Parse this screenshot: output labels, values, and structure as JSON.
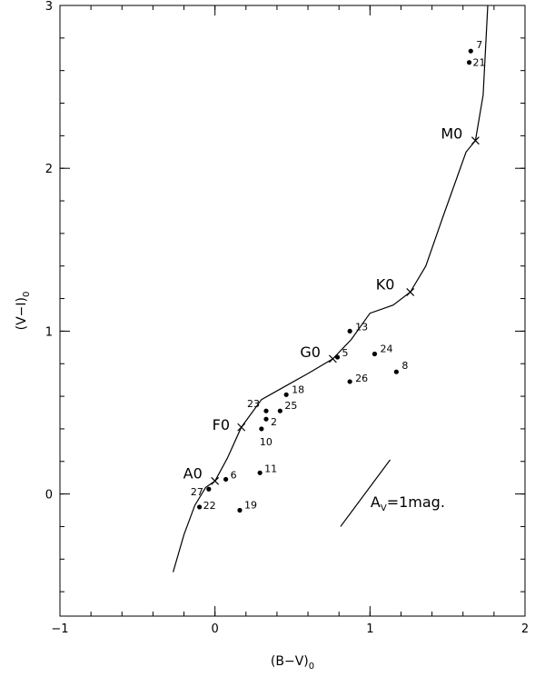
{
  "chart_data": {
    "type": "scatter",
    "title": "",
    "xlabel": "(B−V)",
    "xlabel_sub": "0",
    "ylabel": "(V−I)",
    "ylabel_sub": "0",
    "xlim": [
      -1,
      2
    ],
    "ylim": [
      -0.75,
      3
    ],
    "x_ticks_major": [
      -1,
      0,
      1,
      2
    ],
    "x_tick_labels": [
      "−1",
      "0",
      "1",
      "2"
    ],
    "y_ticks_major": [
      0,
      1,
      2,
      3
    ],
    "y_tick_labels": [
      "0",
      "1",
      "2",
      "3"
    ],
    "x_ticks_minor_step": 0.2,
    "y_ticks_minor_step": 0.2,
    "grid": false,
    "series": [
      {
        "type": "scatter",
        "points": [
          {
            "label": "7",
            "x": 1.65,
            "y": 2.72
          },
          {
            "label": "21",
            "x": 1.64,
            "y": 2.65
          },
          {
            "label": "13",
            "x": 0.87,
            "y": 1.0
          },
          {
            "label": "5",
            "x": 0.79,
            "y": 0.84
          },
          {
            "label": "24",
            "x": 1.03,
            "y": 0.86
          },
          {
            "label": "8",
            "x": 1.17,
            "y": 0.75
          },
          {
            "label": "26",
            "x": 0.87,
            "y": 0.69
          },
          {
            "label": "18",
            "x": 0.46,
            "y": 0.61
          },
          {
            "label": "25",
            "x": 0.42,
            "y": 0.51
          },
          {
            "label": "23",
            "x": 0.33,
            "y": 0.51
          },
          {
            "label": "2",
            "x": 0.33,
            "y": 0.46
          },
          {
            "label": "10",
            "x": 0.3,
            "y": 0.4
          },
          {
            "label": "11",
            "x": 0.29,
            "y": 0.13
          },
          {
            "label": "6",
            "x": 0.07,
            "y": 0.09
          },
          {
            "label": "27",
            "x": -0.04,
            "y": 0.03
          },
          {
            "label": "22",
            "x": -0.1,
            "y": -0.08
          },
          {
            "label": "19",
            "x": 0.16,
            "y": -0.1
          }
        ]
      },
      {
        "type": "line",
        "points": [
          [
            -0.27,
            -0.48
          ],
          [
            -0.2,
            -0.25
          ],
          [
            -0.13,
            -0.07
          ],
          [
            -0.06,
            0.04
          ],
          [
            0.0,
            0.08
          ],
          [
            0.08,
            0.22
          ],
          [
            0.17,
            0.41
          ],
          [
            0.3,
            0.58
          ],
          [
            0.45,
            0.66
          ],
          [
            0.6,
            0.74
          ],
          [
            0.76,
            0.83
          ],
          [
            0.88,
            0.95
          ],
          [
            1.0,
            1.11
          ],
          [
            1.15,
            1.16
          ],
          [
            1.26,
            1.24
          ],
          [
            1.36,
            1.4
          ],
          [
            1.47,
            1.7
          ],
          [
            1.62,
            2.1
          ],
          [
            1.68,
            2.17
          ],
          [
            1.73,
            2.45
          ],
          [
            1.76,
            3.0
          ]
        ]
      }
    ],
    "spectral_markers": [
      {
        "label": "A0",
        "x": 0.0,
        "y": 0.08
      },
      {
        "label": "F0",
        "x": 0.17,
        "y": 0.41
      },
      {
        "label": "G0",
        "x": 0.76,
        "y": 0.83
      },
      {
        "label": "K0",
        "x": 1.26,
        "y": 1.24
      },
      {
        "label": "M0",
        "x": 1.68,
        "y": 2.17
      }
    ],
    "reddening_vector": {
      "label": "A",
      "label_sub": "V",
      "label_rest": "=1mag.",
      "start": [
        0.81,
        -0.2
      ],
      "end": [
        1.13,
        0.21
      ]
    }
  }
}
